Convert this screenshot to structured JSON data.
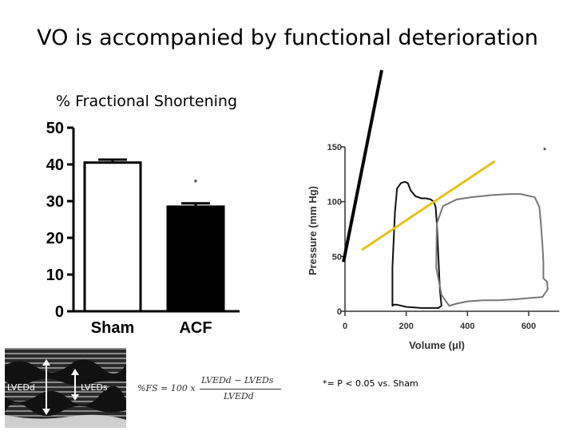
{
  "slide": {
    "title": "VO is accompanied by functional deterioration",
    "footnote": "*= P < 0.05 vs. Sham"
  },
  "chart_data": [
    {
      "type": "bar",
      "title": "% Fractional Shortening",
      "categories": [
        "Sham",
        "ACF"
      ],
      "values": [
        40.5,
        28.5
      ],
      "errors": [
        0.8,
        0.9
      ],
      "ylim": [
        0,
        50
      ],
      "yticks": [
        "0",
        "10",
        "20",
        "30",
        "40",
        "50"
      ],
      "colors": [
        "#ffffff",
        "#000000"
      ],
      "annotations": [
        "",
        "*"
      ]
    },
    {
      "type": "line",
      "xlabel": "Volume (μl)",
      "ylabel": "Pressure (mm Hg)",
      "xlim": [
        0,
        700
      ],
      "ylim": [
        0,
        150
      ],
      "xticks": [
        "0",
        "200",
        "400",
        "600"
      ],
      "yticks": [
        "0",
        "50",
        "100",
        "150"
      ],
      "annotations": [
        "*"
      ],
      "series": [
        {
          "color": "#111111",
          "x": [
            155,
            155,
            163,
            170,
            183,
            195,
            205,
            215,
            230,
            250,
            265,
            280,
            290,
            296,
            300,
            305,
            310,
            315,
            305,
            280,
            250,
            200,
            170,
            163,
            159,
            155
          ],
          "y": [
            5,
            40,
            90,
            112,
            117,
            118,
            117,
            110,
            105,
            103,
            103,
            102,
            100,
            95,
            80,
            50,
            20,
            5,
            3,
            3,
            3,
            4,
            6,
            6,
            6,
            5
          ]
        },
        {
          "color": "#777777",
          "x": [
            340,
            315,
            298,
            300,
            320,
            365,
            410,
            480,
            540,
            575,
            620,
            635,
            640,
            645,
            648,
            648,
            660,
            662,
            645,
            600,
            560,
            500,
            450,
            400,
            365,
            340
          ],
          "y": [
            5,
            15,
            40,
            80,
            96,
            102,
            104,
            106,
            107,
            107,
            104,
            95,
            80,
            60,
            45,
            30,
            27,
            20,
            13,
            12,
            11,
            10,
            10,
            9,
            7,
            5
          ]
        },
        {
          "color": "#e8c21a",
          "x": [
            55,
            490
          ],
          "y": [
            56,
            137
          ]
        },
        {
          "color": "#000000",
          "x": [
            -5,
            120
          ],
          "y": [
            45,
            220
          ]
        }
      ]
    }
  ],
  "echo": {
    "labels": [
      "LVEDd",
      "LVEDs"
    ]
  },
  "formula": {
    "lhs": "%FS = 100 x",
    "numerator": "LVEDd − LVEDs",
    "denominator": "LVEDd"
  }
}
